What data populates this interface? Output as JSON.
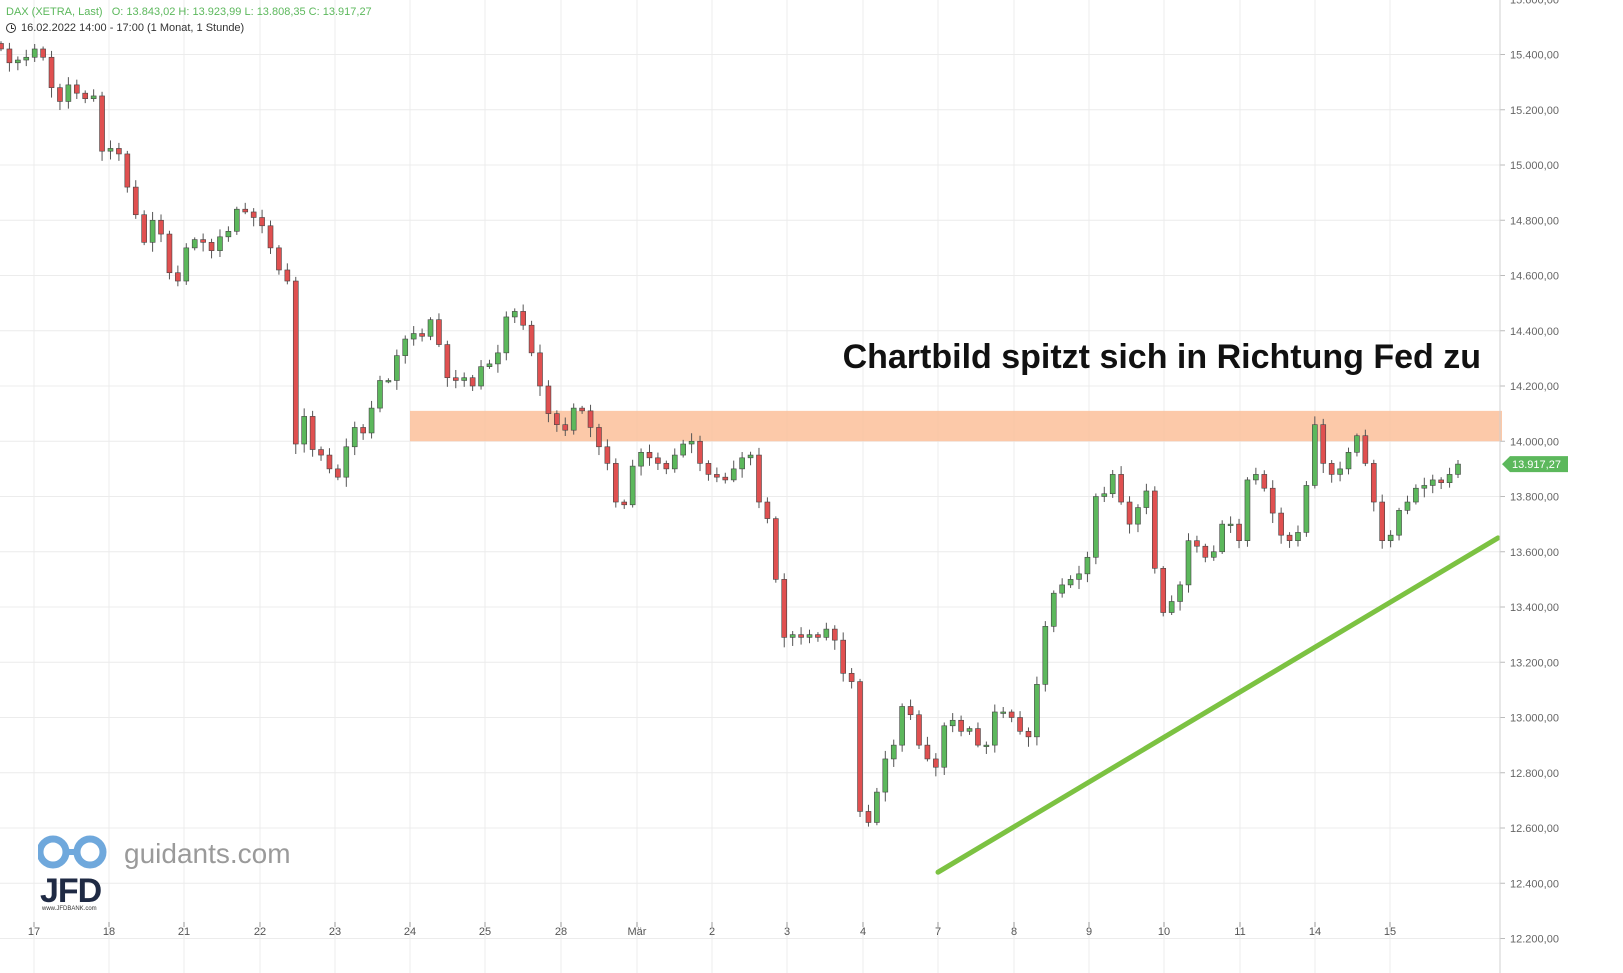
{
  "header": {
    "instrument": "DAX (XETRA, Last)",
    "ohlc": "O: 13.843,02  H: 13.923,99  L: 13.808,35  C: 13.917,27",
    "period": "16.02.2022 14:00 - 17:00   (1 Monat, 1 Stunde)"
  },
  "headline": "Chartbild spitzt sich in Richtung Fed zu",
  "logo": {
    "site": "guidants.com",
    "brand": "JFD",
    "brand_sub": "www.JFDBANK.com"
  },
  "colors": {
    "up": "#5cb85c",
    "down": "#e05050",
    "zone": "#fbbf9a",
    "trend": "#7cc242",
    "price_tag": "#5cb85c"
  },
  "chart_data": {
    "type": "candlestick",
    "timeframe": "1 Stunde",
    "ylim": [
      12200,
      15600
    ],
    "y_ticks": [
      "15.600,00",
      "15.400,00",
      "15.200,00",
      "15.000,00",
      "14.800,00",
      "14.600,00",
      "14.400,00",
      "14.200,00",
      "14.000,00",
      "13.800,00",
      "13.600,00",
      "13.400,00",
      "13.200,00",
      "13.000,00",
      "12.800,00",
      "12.600,00",
      "12.400,00",
      "12.200,00"
    ],
    "x_labels": [
      "17",
      "18",
      "21",
      "22",
      "23",
      "24",
      "25",
      "28",
      "Mär",
      "2",
      "3",
      "4",
      "7",
      "8",
      "9",
      "10",
      "11",
      "14",
      "15"
    ],
    "last_price": 13917.27,
    "last_price_label": "13.917,27",
    "resistance_zone": [
      14000,
      14110
    ],
    "trendline": [
      {
        "day": "7",
        "y": 12440
      },
      {
        "day": "15+",
        "y": 13650
      }
    ],
    "close_path": [
      15420,
      15370,
      15380,
      15390,
      15420,
      15390,
      15280,
      15230,
      15290,
      15260,
      15240,
      15250,
      15050,
      15060,
      15040,
      14920,
      14820,
      14720,
      14800,
      14750,
      14610,
      14580,
      14700,
      14730,
      14720,
      14690,
      14740,
      14760,
      14840,
      14830,
      14810,
      14780,
      14700,
      14620,
      14580,
      13990,
      14090,
      13970,
      13950,
      13900,
      13870,
      13980,
      14050,
      14030,
      14120,
      14220,
      14220,
      14310,
      14370,
      14390,
      14380,
      14440,
      14350,
      14230,
      14220,
      14230,
      14200,
      14270,
      14280,
      14320,
      14450,
      14470,
      14420,
      14320,
      14200,
      14100,
      14060,
      14040,
      14120,
      14110,
      14050,
      13980,
      13920,
      13780,
      13770,
      13910,
      13960,
      13940,
      13920,
      13900,
      13950,
      13990,
      14000,
      13920,
      13880,
      13870,
      13860,
      13900,
      13940,
      13950,
      13780,
      13720,
      13500,
      13290,
      13300,
      13290,
      13300,
      13290,
      13320,
      13280,
      13160,
      13130,
      12660,
      12620,
      12730,
      12850,
      12900,
      13040,
      13010,
      12900,
      12850,
      12820,
      12970,
      12990,
      12950,
      12960,
      12900,
      12900,
      13020,
      13020,
      13000,
      12950,
      12930,
      13120,
      13330,
      13450,
      13480,
      13500,
      13520,
      13580,
      13800,
      13810,
      13880,
      13780,
      13700,
      13760,
      13820,
      13540,
      13380,
      13420,
      13480,
      13640,
      13620,
      13580,
      13600,
      13700,
      13700,
      13640,
      13860,
      13880,
      13830,
      13740,
      13660,
      13640,
      13670,
      13840,
      14060,
      13920,
      13880,
      13900,
      13960,
      14020,
      13920,
      13780,
      13640,
      13660,
      13750,
      13780,
      13830,
      13840,
      13860,
      13850,
      13880,
      13917.27
    ]
  }
}
